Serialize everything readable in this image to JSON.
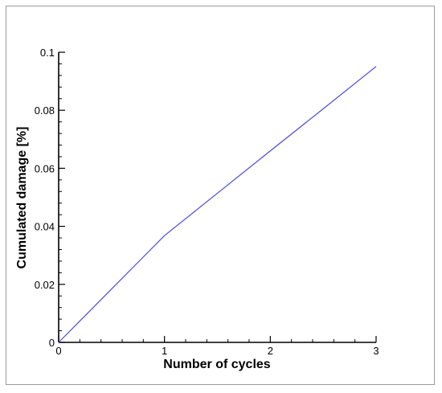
{
  "chart_data": {
    "type": "line",
    "title": "",
    "xlabel": "Number of cycles",
    "ylabel": "Cumulated damage [%]",
    "xlim": [
      0,
      3
    ],
    "ylim": [
      0,
      0.1
    ],
    "x_ticks": [
      "0",
      "1",
      "2",
      "3"
    ],
    "y_ticks": [
      "0",
      "0.02",
      "0.04",
      "0.06",
      "0.08",
      "0.1"
    ],
    "grid": false,
    "legend": "none",
    "series": [
      {
        "color": "#4a4adf",
        "x": [
          0,
          0.25,
          0.5,
          0.75,
          1.0,
          1.5,
          2.0,
          2.5,
          3.0
        ],
        "y": [
          0,
          0.0092,
          0.0184,
          0.0276,
          0.0368,
          0.0514,
          0.066,
          0.0805,
          0.0951
        ]
      }
    ]
  }
}
